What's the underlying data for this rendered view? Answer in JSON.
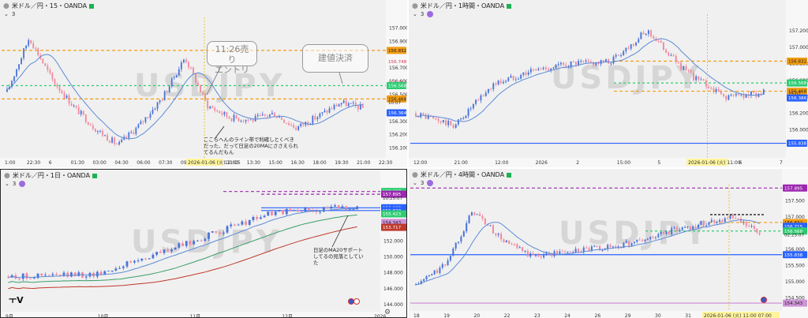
{
  "watermark": "USDJPY",
  "colors": {
    "bull": "#4a73d8",
    "bear": "#f2889c",
    "ma": "#5c8bd6",
    "ma_green": "#3a9e6a",
    "ma_red": "#c0392b",
    "orange": "#f39c12",
    "green_line": "#2ecc71",
    "blue_line": "#2962ff",
    "purple": "#9c27b0"
  },
  "panels": [
    {
      "title": "米ドル／円・15・OANDA",
      "sub": "3",
      "price_labels": [
        {
          "text": "156.832",
          "bg": "#f39c12",
          "fg": "#222",
          "y": 156.832
        },
        {
          "text": "156.748",
          "bg": "none",
          "fg": "#d35",
          "y": 156.748
        },
        {
          "text": "156.591",
          "bg": "none",
          "fg": "#d35",
          "y": 156.591
        },
        {
          "text": "156.568",
          "bg": "#2ecc71",
          "fg": "#fff",
          "y": 156.568
        },
        {
          "text": "156.468",
          "bg": "#f39c12",
          "fg": "#222",
          "y": 156.468
        },
        {
          "text": "10:07",
          "bg": "none",
          "fg": "#333",
          "y": 156.44
        },
        {
          "text": "156.364",
          "bg": "#2962ff",
          "fg": "#fff",
          "y": 156.364
        }
      ],
      "y_ticks": [
        "157.000",
        "156.900",
        "156.700",
        "156.600",
        "156.500",
        "156.300",
        "156.200",
        "156.100"
      ],
      "x_ticks": [
        "1:00",
        "22:30",
        "6",
        "01:30",
        "03:00",
        "04:30",
        "06:00",
        "07:30",
        "09:00",
        "10:30",
        "12:00",
        "13:30",
        "15:00",
        "16:30",
        "18:00",
        "19:30",
        "21:00",
        "22:30"
      ],
      "x_highlight": [
        "2026-01-06 (火)",
        "11:15"
      ],
      "callouts": [
        "11:26売り\nエントリ",
        "建値決済"
      ],
      "note": "ここらへんのライン帯で利確しとくべき\nだった、だって日足の20MAにささえられ\nてるんだもん",
      "chart_data": {
        "type": "line",
        "title": "米ドル／円・15・OANDA",
        "x": [
          "1:00",
          "22:30",
          "6",
          "01:30",
          "03:00",
          "04:30",
          "06:00",
          "07:30",
          "09:00",
          "10:30",
          "12:00",
          "13:30",
          "15:00",
          "16:30",
          "18:00",
          "19:30",
          "21:00"
        ],
        "series": [
          {
            "name": "close",
            "values": [
              156.52,
              156.93,
              156.62,
              156.41,
              156.24,
              156.12,
              156.28,
              156.48,
              156.78,
              156.42,
              156.33,
              156.31,
              156.36,
              156.25,
              156.34,
              156.44,
              156.4
            ]
          }
        ],
        "ylim": [
          156.05,
          157.08
        ]
      }
    },
    {
      "title": "米ドル／円・1時間・OANDA",
      "sub": "3",
      "price_labels": [
        {
          "text": "156.832",
          "bg": "#f39c12",
          "fg": "#222",
          "y": 156.832
        },
        {
          "text": "156.591",
          "bg": "none",
          "fg": "#d35",
          "y": 156.591
        },
        {
          "text": "156.568",
          "bg": "#2ecc71",
          "fg": "#fff",
          "y": 156.568
        },
        {
          "text": "156.468",
          "bg": "#f39c12",
          "fg": "#222",
          "y": 156.468
        },
        {
          "text": "25:07",
          "bg": "none",
          "fg": "#333",
          "y": 156.44
        },
        {
          "text": "156.386",
          "bg": "#2962ff",
          "fg": "#fff",
          "y": 156.386
        },
        {
          "text": "155.838",
          "bg": "#2962ff",
          "fg": "#fff",
          "y": 155.838
        }
      ],
      "y_ticks": [
        "157.200",
        "157.000",
        "156.800",
        "156.600",
        "156.400",
        "156.200",
        "156.000"
      ],
      "x_ticks": [
        "12:00",
        "21:00",
        "12:00",
        "2026",
        "2",
        "15:00",
        "5",
        "15:00",
        "6",
        "7"
      ],
      "x_highlight": [
        "2026-01-06 (火)",
        "11:00"
      ],
      "chart_data": {
        "type": "line",
        "title": "米ドル／円・1時間・OANDA",
        "x": [
          "12:00",
          "21:00",
          "12:00",
          "2026",
          "2",
          "15:00",
          "5",
          "15:00",
          "6",
          "7"
        ],
        "series": [
          {
            "name": "close",
            "values": [
              156.2,
              156.05,
              156.55,
              156.72,
              156.8,
              156.82,
              157.2,
              156.7,
              156.4,
              156.45
            ]
          }
        ],
        "ylim": [
          155.7,
          157.4
        ]
      }
    },
    {
      "title": "米ドル／円・1日・OANDA",
      "sub": "3",
      "price_labels": [
        {
          "text": "158.237",
          "bg": "#2ecc71",
          "fg": "#fff",
          "y": 158.237
        },
        {
          "text": "157.895",
          "bg": "#9c27b0",
          "fg": "#fff",
          "y": 157.895
        },
        {
          "text": "10:25:07",
          "bg": "none",
          "fg": "#333",
          "y": 157.4
        },
        {
          "text": "156.188",
          "bg": "#2962ff",
          "fg": "#fff",
          "y": 156.188
        },
        {
          "text": "155.838",
          "bg": "#2962ff",
          "fg": "#fff",
          "y": 155.838
        },
        {
          "text": "155.423",
          "bg": "#2ecc71",
          "fg": "#fff",
          "y": 155.423
        },
        {
          "text": "154.343",
          "bg": "#ce93d8",
          "fg": "#222",
          "y": 154.343
        },
        {
          "text": "153.717",
          "bg": "#c0392b",
          "fg": "#fff",
          "y": 153.717
        }
      ],
      "y_ticks": [
        "158.000",
        "156.000",
        "152.000",
        "150.000",
        "148.000",
        "146.000",
        "144.000"
      ],
      "x_ticks": [
        "9月",
        "10月",
        "11月",
        "12月",
        "2026"
      ],
      "note": "日足のMA20サポート\nしてるの見落としてい\nた",
      "chart_data": {
        "type": "line",
        "title": "米ドル／円・1日・OANDA",
        "x": [
          "9月",
          "10月",
          "11月",
          "12月",
          "2026"
        ],
        "series": [
          {
            "name": "close",
            "values": [
              147.5,
              147.8,
              151.5,
              155.5,
              156.4
            ]
          },
          {
            "name": "MA",
            "values": [
              147.3,
              148.2,
              152.0,
              154.8,
              155.6
            ]
          }
        ],
        "ylim": [
          143.5,
          159.0
        ]
      }
    },
    {
      "title": "米ドル／円・4時間・OANDA",
      "sub": "3",
      "price_labels": [
        {
          "text": "157.895",
          "bg": "#9c27b0",
          "fg": "#fff",
          "y": 157.895
        },
        {
          "text": "156.832",
          "bg": "#f39c12",
          "fg": "#222",
          "y": 156.832
        },
        {
          "text": "156.715",
          "bg": "#2962ff",
          "fg": "#fff",
          "y": 156.715
        },
        {
          "text": "156.568",
          "bg": "#2ecc71",
          "fg": "#fff",
          "y": 156.568
        },
        {
          "text": "02:25:07",
          "bg": "none",
          "fg": "#333",
          "y": 156.45
        },
        {
          "text": "155.838",
          "bg": "#2962ff",
          "fg": "#fff",
          "y": 155.838
        },
        {
          "text": "154.343",
          "bg": "#ce93d8",
          "fg": "#222",
          "y": 154.343
        }
      ],
      "y_ticks": [
        "157.500",
        "157.000",
        "156.500",
        "156.000",
        "155.500",
        "155.000",
        "154.500"
      ],
      "x_ticks": [
        "18",
        "19",
        "20",
        "22",
        "23",
        "24",
        "26",
        "29",
        "30",
        "31",
        "2026",
        "2",
        "3"
      ],
      "x_highlight": [
        "2026-01-06 (火)",
        "11:00",
        "07:00"
      ],
      "chart_data": {
        "type": "line",
        "title": "米ドル／円・4時間・OANDA",
        "x": [
          "18",
          "19",
          "20",
          "22",
          "23",
          "24",
          "26",
          "29",
          "30",
          "31",
          "2026",
          "2",
          "3"
        ],
        "series": [
          {
            "name": "close",
            "values": [
              154.9,
              155.5,
              157.2,
              156.3,
              155.8,
              155.9,
              156.0,
              156.1,
              156.3,
              156.6,
              156.8,
              157.0,
              156.5
            ]
          }
        ],
        "ylim": [
          154.2,
          158.0
        ]
      }
    }
  ]
}
